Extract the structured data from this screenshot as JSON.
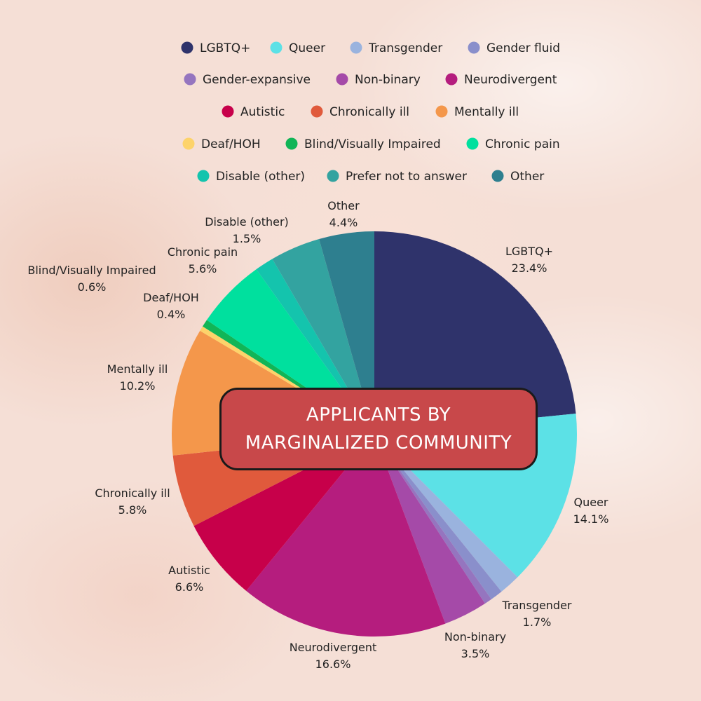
{
  "chart_data": {
    "type": "pie",
    "title_lines": [
      "APPLICANTS BY",
      "MARGINALIZED COMMUNITY"
    ],
    "categories": [
      "LGBTQ+",
      "Queer",
      "Transgender",
      "Gender fluid",
      "Gender-expansive",
      "Non-binary",
      "Neurodivergent",
      "Autistic",
      "Chronically ill",
      "Mentally ill",
      "Deaf/HOH",
      "Blind/Visually Impaired",
      "Chronic pain",
      "Disable (other)",
      "Prefer not to answer",
      "Other"
    ],
    "values": [
      23.4,
      14.1,
      1.7,
      1.0,
      0.6,
      3.5,
      16.6,
      6.6,
      5.8,
      10.2,
      0.4,
      0.6,
      5.6,
      1.5,
      4.0,
      4.4
    ],
    "value_labels": [
      "23.4%",
      "14.1%",
      "1.7%",
      "",
      "",
      "3.5%",
      "16.6%",
      "6.6%",
      "5.8%",
      "10.2%",
      "0.4%",
      "0.6%",
      "5.6%",
      "1.5%",
      "",
      "4.4%"
    ],
    "colors": [
      "#2f336b",
      "#5ce1e6",
      "#9ab3de",
      "#8a8fcb",
      "#9575bf",
      "#a54aa8",
      "#b51d7e",
      "#c7004a",
      "#e05a3c",
      "#f4974b",
      "#fdd36a",
      "#11b557",
      "#00e09e",
      "#14c4ad",
      "#33a3a0",
      "#2e7f8f"
    ],
    "legend_placement": "top",
    "show_slice_labels": [
      true,
      true,
      true,
      false,
      false,
      true,
      true,
      true,
      true,
      true,
      true,
      true,
      true,
      true,
      false,
      true
    ]
  }
}
